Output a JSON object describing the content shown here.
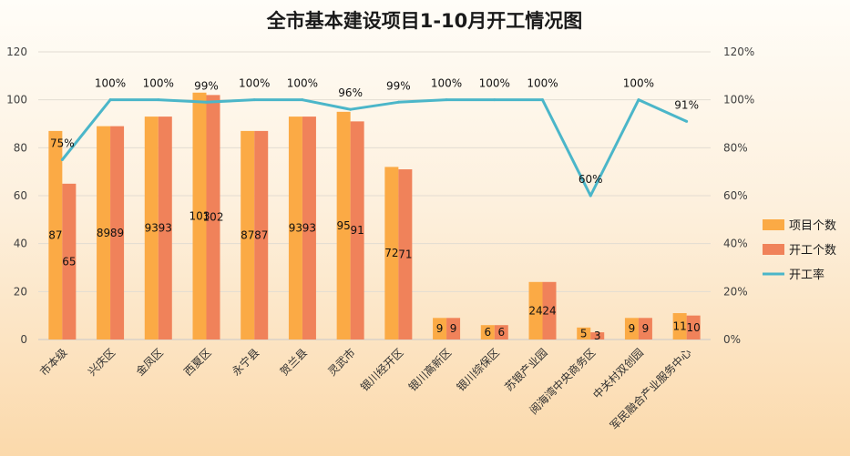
{
  "chart_data": {
    "type": "bar",
    "title": "全市基本建设项目1-10月开工情况图",
    "categories": [
      "市本级",
      "兴庆区",
      "金凤区",
      "西夏区",
      "永宁县",
      "贺兰县",
      "灵武市",
      "银川经开区",
      "银川高新区",
      "银川综保区",
      "苏银产业园",
      "阅海湾中央商务区",
      "中关村双创园",
      "军民融合产业服务中心"
    ],
    "series": [
      {
        "name": "项目个数",
        "type": "bar",
        "axis": "left",
        "color": "#fbaa45",
        "values": [
          87,
          89,
          93,
          103,
          87,
          93,
          95,
          72,
          9,
          6,
          24,
          5,
          9,
          11
        ]
      },
      {
        "name": "开工个数",
        "type": "bar",
        "axis": "left",
        "color": "#f0825a",
        "values": [
          65,
          89,
          93,
          102,
          87,
          93,
          91,
          71,
          9,
          6,
          24,
          3,
          9,
          10
        ]
      },
      {
        "name": "开工率",
        "type": "line",
        "axis": "right",
        "color": "#4bb6c9",
        "values": [
          75,
          100,
          100,
          99,
          100,
          100,
          96,
          99,
          100,
          100,
          100,
          60,
          100,
          91
        ]
      }
    ],
    "left_axis": {
      "min": 0,
      "max": 120,
      "ticks": [
        0,
        20,
        40,
        60,
        80,
        100,
        120
      ]
    },
    "right_axis": {
      "min": 0,
      "max": 120,
      "ticks": [
        "0%",
        "20%",
        "40%",
        "60%",
        "80%",
        "100%",
        "120%"
      ],
      "suffix": "%"
    },
    "legend": {
      "position": "right"
    },
    "grid": true
  }
}
